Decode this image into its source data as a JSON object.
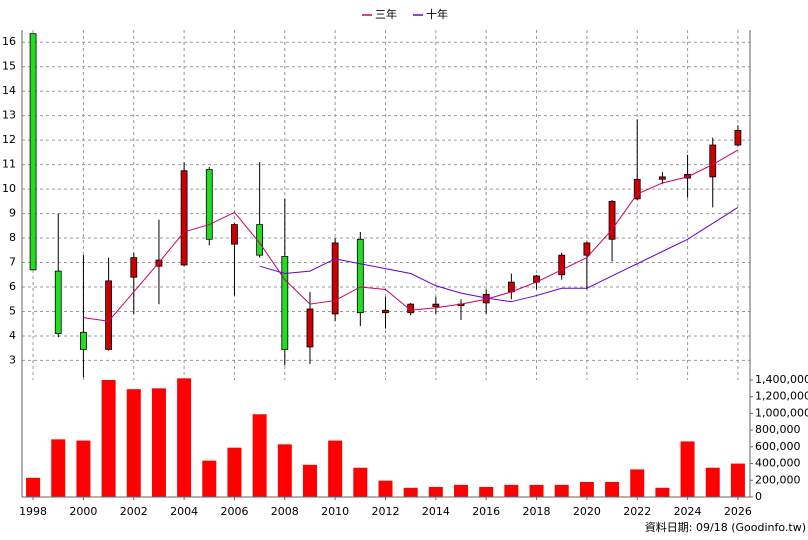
{
  "chart_data": [
    {
      "type": "candlestick",
      "x": [
        1998,
        1999,
        2000,
        2001,
        2002,
        2003,
        2004,
        2005,
        2006,
        2007,
        2008,
        2009,
        2010,
        2011,
        2012,
        2013,
        2014,
        2015,
        2016,
        2017,
        2018,
        2019,
        2020,
        2021,
        2022,
        2023,
        2024,
        2025,
        2026
      ],
      "open": [
        16.35,
        6.65,
        4.15,
        3.45,
        6.4,
        6.85,
        6.9,
        10.8,
        7.75,
        8.55,
        7.25,
        3.55,
        4.9,
        7.95,
        4.95,
        4.95,
        5.2,
        5.25,
        5.35,
        5.8,
        6.2,
        6.5,
        7.3,
        7.95,
        9.6,
        10.4,
        10.45,
        10.5,
        11.8
      ],
      "high": [
        16.35,
        9.0,
        7.3,
        7.2,
        7.4,
        8.75,
        11.1,
        10.9,
        8.6,
        11.1,
        9.6,
        5.8,
        8.0,
        8.25,
        5.6,
        5.35,
        5.6,
        5.5,
        5.9,
        6.55,
        6.5,
        7.4,
        7.85,
        9.55,
        12.85,
        10.7,
        11.4,
        12.1,
        12.6
      ],
      "low": [
        6.7,
        3.95,
        2.3,
        3.4,
        4.9,
        5.3,
        6.85,
        7.7,
        5.65,
        7.2,
        2.8,
        2.85,
        4.6,
        4.4,
        4.3,
        4.85,
        4.9,
        4.65,
        4.9,
        5.5,
        5.9,
        6.3,
        5.9,
        7.05,
        9.55,
        10.2,
        9.65,
        9.25,
        11.75
      ],
      "close": [
        6.7,
        4.1,
        3.45,
        6.25,
        7.2,
        7.1,
        10.75,
        7.95,
        8.55,
        7.3,
        3.45,
        5.1,
        7.8,
        4.95,
        5.05,
        5.3,
        5.3,
        5.3,
        5.7,
        6.2,
        6.45,
        7.3,
        7.8,
        9.5,
        10.4,
        10.5,
        10.6,
        11.8,
        12.4
      ],
      "up_color": "#cc0000",
      "down_color": "#22dd22",
      "series": [
        {
          "name": "三年",
          "color": "#cc0066",
          "values": [
            null,
            null,
            4.75,
            4.6,
            5.8,
            7.0,
            8.25,
            8.55,
            9.05,
            7.8,
            6.3,
            5.3,
            5.45,
            6.0,
            5.9,
            5.05,
            5.15,
            5.3,
            5.5,
            5.8,
            6.2,
            6.7,
            7.2,
            8.35,
            9.8,
            10.25,
            10.5,
            11.0,
            11.6
          ]
        },
        {
          "name": "十年",
          "color": "#6600cc",
          "values": [
            null,
            null,
            null,
            null,
            null,
            null,
            null,
            null,
            null,
            6.85,
            6.55,
            6.65,
            7.15,
            6.95,
            6.75,
            6.55,
            6.05,
            5.75,
            5.55,
            5.4,
            5.65,
            5.95,
            5.95,
            6.45,
            6.95,
            7.45,
            7.95,
            8.6,
            9.25
          ]
        }
      ],
      "xlim": [
        1997.56,
        2026.48
      ],
      "ylim": [
        2.2,
        16.5
      ],
      "yticks": [
        3,
        4,
        5,
        6,
        7,
        8,
        9,
        10,
        11,
        12,
        13,
        14,
        15,
        16
      ],
      "xticks": [
        1998,
        2000,
        2002,
        2004,
        2006,
        2008,
        2010,
        2012,
        2014,
        2016,
        2018,
        2020,
        2022,
        2024,
        2026
      ],
      "grid": true
    },
    {
      "type": "bar",
      "x": [
        1998,
        1999,
        2000,
        2001,
        2002,
        2003,
        2004,
        2005,
        2006,
        2007,
        2008,
        2009,
        2010,
        2011,
        2012,
        2013,
        2014,
        2015,
        2016,
        2017,
        2018,
        2019,
        2020,
        2021,
        2022,
        2023,
        2024,
        2025,
        2026
      ],
      "values": [
        230000,
        690000,
        675000,
        1400000,
        1290000,
        1300000,
        1420000,
        435000,
        590000,
        990000,
        630000,
        385000,
        675000,
        350000,
        195000,
        110000,
        120000,
        145000,
        120000,
        145000,
        145000,
        145000,
        180000,
        180000,
        330000,
        110000,
        665000,
        350000,
        400000
      ],
      "color": "#ff0000",
      "xlim": [
        1997.56,
        2026.48
      ],
      "ylim": [
        0,
        1400000
      ],
      "yticks": [
        0,
        {
          "value": 200000,
          "label": "200,000"
        },
        {
          "value": 400000,
          "label": "400,000"
        },
        {
          "value": 600000,
          "label": "600,000"
        },
        {
          "value": 800000,
          "label": "800,000"
        },
        {
          "value": 1000000,
          "label": "1,000,000"
        },
        {
          "value": 1200000,
          "label": "1,200,000"
        },
        {
          "value": 1400000,
          "label": "1,400,000"
        }
      ]
    }
  ],
  "footer": "資料日期: 09/18 (Goodinfo.tw)"
}
